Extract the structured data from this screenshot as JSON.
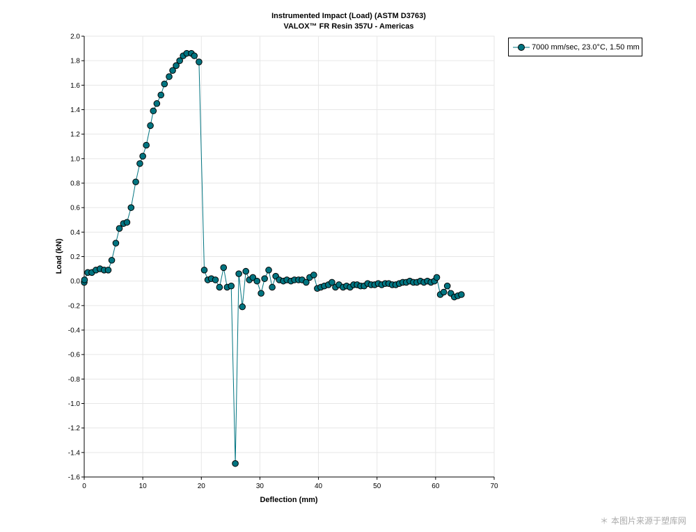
{
  "chart_data": {
    "type": "line",
    "title": "Instrumented Impact (Load) (ASTM D3763)",
    "subtitle": "VALOX™ FR Resin 357U - Americas",
    "xlabel": "Deflection (mm)",
    "ylabel": "Load (kN)",
    "xlim": [
      0,
      70
    ],
    "ylim": [
      -1.6,
      2.0
    ],
    "xticks": [
      "0",
      "10",
      "20",
      "30",
      "40",
      "50",
      "60",
      "70"
    ],
    "yticks": [
      "-1.6",
      "-1.4",
      "-1.2",
      "-1.0",
      "-0.8",
      "-0.6",
      "-0.4",
      "-0.2",
      "0.0",
      "0.2",
      "0.4",
      "0.6",
      "0.8",
      "1.0",
      "1.2",
      "1.4",
      "1.6",
      "1.8",
      "2.0"
    ],
    "grid": true,
    "legend_position": "right-top",
    "series": [
      {
        "name": "7000 mm/sec, 23.0°C, 1.50 mm",
        "color": "#007480",
        "x": [
          0,
          0.05,
          0.6,
          1.3,
          2.0,
          2.7,
          3.4,
          4.1,
          4.7,
          5.4,
          6.0,
          6.7,
          7.3,
          8.0,
          8.8,
          9.5,
          10.0,
          10.6,
          11.3,
          11.8,
          12.4,
          13.1,
          13.7,
          14.5,
          15.1,
          15.7,
          16.3,
          16.9,
          17.5,
          18.3,
          18.8,
          19.6,
          20.5,
          21.1,
          21.7,
          22.4,
          23.1,
          23.8,
          24.4,
          25.1,
          25.8,
          26.4,
          27.0,
          27.6,
          28.2,
          28.8,
          29.5,
          30.2,
          30.8,
          31.5,
          32.1,
          32.7,
          33.3,
          34.0,
          34.6,
          35.3,
          35.9,
          36.6,
          37.2,
          37.9,
          38.5,
          39.2,
          39.8,
          40.4,
          41.0,
          41.7,
          42.3,
          42.9,
          43.5,
          44.2,
          44.8,
          45.4,
          46.0,
          46.6,
          47.2,
          47.8,
          48.4,
          49.0,
          49.6,
          50.2,
          50.8,
          51.4,
          52.0,
          52.6,
          53.2,
          53.8,
          54.4,
          55.0,
          55.6,
          56.2,
          56.8,
          57.4,
          58.0,
          58.6,
          59.2,
          59.8,
          60.2,
          60.8,
          61.4,
          62.0,
          62.6,
          63.2,
          63.8,
          64.4
        ],
        "y": [
          -0.01,
          0.01,
          0.07,
          0.07,
          0.09,
          0.1,
          0.09,
          0.09,
          0.17,
          0.31,
          0.43,
          0.47,
          0.48,
          0.6,
          0.81,
          0.96,
          1.02,
          1.11,
          1.27,
          1.39,
          1.45,
          1.52,
          1.61,
          1.67,
          1.72,
          1.76,
          1.8,
          1.84,
          1.86,
          1.86,
          1.84,
          1.79,
          0.09,
          0.01,
          0.02,
          0.01,
          -0.05,
          0.11,
          -0.05,
          -0.04,
          -1.49,
          0.06,
          -0.21,
          0.08,
          0.01,
          0.03,
          0.0,
          -0.1,
          0.02,
          0.09,
          -0.05,
          0.04,
          0.01,
          0.0,
          0.01,
          0.0,
          0.01,
          0.01,
          0.01,
          -0.01,
          0.03,
          0.05,
          -0.06,
          -0.05,
          -0.04,
          -0.03,
          -0.01,
          -0.05,
          -0.03,
          -0.05,
          -0.04,
          -0.05,
          -0.03,
          -0.03,
          -0.04,
          -0.04,
          -0.02,
          -0.03,
          -0.03,
          -0.02,
          -0.03,
          -0.02,
          -0.02,
          -0.03,
          -0.03,
          -0.02,
          -0.01,
          -0.01,
          0.0,
          -0.01,
          -0.01,
          0.0,
          -0.01,
          0.0,
          -0.01,
          0.0,
          0.03,
          -0.11,
          -0.09,
          -0.04,
          -0.1,
          -0.13,
          -0.12,
          -0.11
        ]
      }
    ]
  },
  "watermark": "＊ 本图片来源于塑库网"
}
